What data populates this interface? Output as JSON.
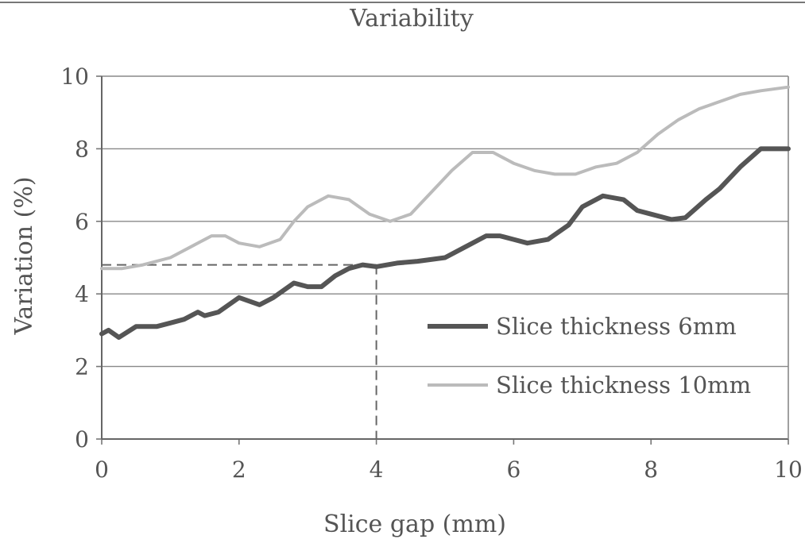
{
  "chart_data": {
    "type": "line",
    "title": "Variability",
    "xlabel": "Slice gap (mm)",
    "ylabel": "Variation (%)",
    "xlim": [
      0,
      10
    ],
    "ylim": [
      0,
      10
    ],
    "xticks": [
      "0",
      "2",
      "4",
      "6",
      "8",
      "10"
    ],
    "yticks": [
      "0",
      "2",
      "4",
      "6",
      "8",
      "10"
    ],
    "grid": "horizontal",
    "legend_position": "bottom-right",
    "series": [
      {
        "name": "Slice thickness 6mm",
        "color": "#555555",
        "x": [
          0,
          0.1,
          0.25,
          0.5,
          0.8,
          1.0,
          1.2,
          1.4,
          1.5,
          1.7,
          2.0,
          2.3,
          2.5,
          2.8,
          3.0,
          3.2,
          3.4,
          3.6,
          3.8,
          4.0,
          4.3,
          4.6,
          5.0,
          5.3,
          5.6,
          5.8,
          6.0,
          6.2,
          6.5,
          6.8,
          7.0,
          7.3,
          7.6,
          7.8,
          8.0,
          8.3,
          8.5,
          8.8,
          9.0,
          9.3,
          9.6,
          10.0
        ],
        "y": [
          2.9,
          3.0,
          2.8,
          3.1,
          3.1,
          3.2,
          3.3,
          3.5,
          3.4,
          3.5,
          3.9,
          3.7,
          3.9,
          4.3,
          4.2,
          4.2,
          4.5,
          4.7,
          4.8,
          4.75,
          4.85,
          4.9,
          5.0,
          5.3,
          5.6,
          5.6,
          5.5,
          5.4,
          5.5,
          5.9,
          6.4,
          6.7,
          6.6,
          6.3,
          6.2,
          6.05,
          6.1,
          6.6,
          6.9,
          7.5,
          8.0,
          8.0
        ]
      },
      {
        "name": "Slice thickness 10mm",
        "color": "#bbbbbb",
        "x": [
          0,
          0.3,
          0.6,
          1.0,
          1.3,
          1.6,
          1.8,
          2.0,
          2.3,
          2.6,
          2.8,
          3.0,
          3.3,
          3.6,
          3.9,
          4.2,
          4.5,
          4.8,
          5.1,
          5.4,
          5.7,
          6.0,
          6.3,
          6.6,
          6.9,
          7.2,
          7.5,
          7.8,
          8.1,
          8.4,
          8.7,
          9.0,
          9.3,
          9.6,
          10.0
        ],
        "y": [
          4.7,
          4.7,
          4.8,
          5.0,
          5.3,
          5.6,
          5.6,
          5.4,
          5.3,
          5.5,
          6.0,
          6.4,
          6.7,
          6.6,
          6.2,
          6.0,
          6.2,
          6.8,
          7.4,
          7.9,
          7.9,
          7.6,
          7.4,
          7.3,
          7.3,
          7.5,
          7.6,
          7.9,
          8.4,
          8.8,
          9.1,
          9.3,
          9.5,
          9.6,
          9.7
        ]
      }
    ],
    "annotations": [
      {
        "type": "dashed-guide",
        "x": 4,
        "y": 4.8
      }
    ]
  }
}
